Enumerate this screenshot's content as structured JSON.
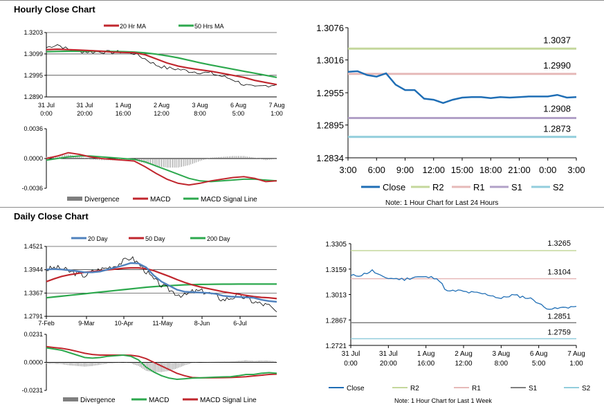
{
  "hourly": {
    "title": "Hourly Close Chart",
    "price_legend": [
      "20 Hr MA",
      "50 Hrs MA"
    ],
    "macd_legend": [
      "Divergence",
      "MACD",
      "MACD Signal Line"
    ],
    "colors": {
      "ma_fast": "#c0262d",
      "ma_slow": "#2ca84d",
      "price": "#000000",
      "signal": "#2ca84d",
      "macd": "#c0262d",
      "divergence": "#7f7f7f"
    },
    "x_ticks": [
      [
        "31 Jul",
        "0:00"
      ],
      [
        "31 Jul",
        "20:00"
      ],
      [
        "1 Aug",
        "16:00"
      ],
      [
        "2 Aug",
        "12:00"
      ],
      [
        "3 Aug",
        "8:00"
      ],
      [
        "6 Aug",
        "5:00"
      ],
      [
        "7 Aug",
        "1:00"
      ]
    ]
  },
  "daily": {
    "title": "Daily Close Chart",
    "price_legend": [
      "20 Day",
      "50 Day",
      "200 Day"
    ],
    "macd_legend": [
      "Divergence",
      "MACD",
      "MACD Signal Line"
    ],
    "colors": {
      "ma20": "#4f81bd",
      "ma50": "#c0262d",
      "ma200": "#2ca84d",
      "price": "#000000",
      "macd": "#2ca84d",
      "signal": "#c0262d",
      "divergence": "#7f7f7f"
    },
    "x_ticks": [
      "7-Feb",
      "9-Mar",
      "10-Apr",
      "11-May",
      "8-Jun",
      "6-Jul"
    ]
  },
  "pivot24": {
    "note": "Note: 1 Hour Chart for Last 24 Hours",
    "legend": [
      "Close",
      "R2",
      "R1",
      "S1",
      "S2"
    ],
    "colors": {
      "close": "#1f6eb5",
      "R2": "#c4d79b",
      "R1": "#e6b9b8",
      "S1": "#b1a0c7",
      "S2": "#92cddc"
    }
  },
  "pivotweek": {
    "note": "Note: 1 Hour Chart for Last 1 Week",
    "legend": [
      "Close",
      "R2",
      "R1",
      "S1",
      "S2"
    ],
    "colors": {
      "close": "#1f6eb5",
      "R2": "#c4d79b",
      "R1": "#e6b9b8",
      "S1": "#7f7f7f",
      "S2": "#92cddc"
    },
    "x_ticks": [
      [
        "31 Jul",
        "0:00"
      ],
      [
        "31 Jul",
        "20:00"
      ],
      [
        "1 Aug",
        "16:00"
      ],
      [
        "2 Aug",
        "12:00"
      ],
      [
        "3 Aug",
        "8:00"
      ],
      [
        "6 Aug",
        "5:00"
      ],
      [
        "7 Aug",
        "1:00"
      ]
    ]
  },
  "chart_data": [
    {
      "id": "hourly_price",
      "type": "line",
      "title": "Hourly Close Chart",
      "ylim": [
        1.289,
        1.3203
      ],
      "yticks": [
        1.3203,
        1.3099,
        1.2995,
        1.289
      ],
      "x": [
        0,
        6,
        12,
        18,
        24,
        30,
        36,
        42,
        48,
        54,
        60,
        66,
        72,
        78,
        84,
        90,
        96,
        102,
        108,
        114,
        120,
        126
      ],
      "series": [
        {
          "name": "Close",
          "values": [
            1.313,
            1.3145,
            1.312,
            1.3112,
            1.3108,
            1.311,
            1.3106,
            1.311,
            1.3102,
            1.3075,
            1.3045,
            1.303,
            1.3025,
            1.3015,
            1.301,
            1.3005,
            1.299,
            1.2975,
            1.295,
            1.2935,
            1.2945,
            1.295
          ]
        },
        {
          "name": "20 Hr MA",
          "values": [
            1.312,
            1.3122,
            1.312,
            1.3118,
            1.3115,
            1.3112,
            1.3108,
            1.3106,
            1.3105,
            1.3095,
            1.3075,
            1.3055,
            1.304,
            1.303,
            1.3022,
            1.3015,
            1.3005,
            1.2995,
            1.2985,
            1.297,
            1.296,
            1.295
          ]
        },
        {
          "name": "50 Hrs MA",
          "values": [
            1.311,
            1.3111,
            1.3112,
            1.3112,
            1.3112,
            1.3112,
            1.3111,
            1.311,
            1.3108,
            1.3104,
            1.3098,
            1.309,
            1.308,
            1.3068,
            1.3056,
            1.3045,
            1.3035,
            1.3025,
            1.3015,
            1.3005,
            1.2995,
            1.2985
          ]
        }
      ]
    },
    {
      "id": "hourly_macd",
      "type": "line",
      "ylim": [
        -0.0036,
        0.0036
      ],
      "yticks": [
        0.0036,
        0.0,
        -0.0036
      ],
      "x": [
        0,
        6,
        12,
        18,
        24,
        30,
        36,
        42,
        48,
        54,
        60,
        66,
        72,
        78,
        84,
        90,
        96,
        102,
        108,
        114,
        120,
        126
      ],
      "series": [
        {
          "name": "MACD",
          "values": [
            0.0,
            0.0003,
            0.0007,
            0.0005,
            0.0002,
            0.0,
            -0.0001,
            -0.0002,
            -0.0003,
            -0.001,
            -0.0018,
            -0.0025,
            -0.003,
            -0.0032,
            -0.003,
            -0.0027,
            -0.0025,
            -0.0023,
            -0.0022,
            -0.0024,
            -0.0028,
            -0.0027
          ]
        },
        {
          "name": "MACD Signal Line",
          "values": [
            -0.0002,
            0.0,
            0.0002,
            0.0003,
            0.0003,
            0.0002,
            0.0001,
            0.0,
            -0.0001,
            -0.0004,
            -0.0009,
            -0.0014,
            -0.0019,
            -0.0024,
            -0.0027,
            -0.0028,
            -0.0027,
            -0.0026,
            -0.0025,
            -0.0025,
            -0.0026,
            -0.0027
          ]
        },
        {
          "name": "Divergence",
          "values": [
            0.0002,
            0.0003,
            0.0005,
            0.0002,
            -0.0001,
            -0.0002,
            -0.0002,
            -0.0002,
            -0.0002,
            -0.0006,
            -0.0009,
            -0.0011,
            -0.0011,
            -0.0008,
            -0.0003,
            0.0001,
            0.0002,
            0.0003,
            0.0003,
            0.0001,
            -0.0002,
            0.0
          ]
        }
      ]
    },
    {
      "id": "daily_price",
      "type": "line",
      "title": "Daily Close Chart",
      "ylim": [
        1.2791,
        1.4521
      ],
      "yticks": [
        1.4521,
        1.3944,
        1.3367,
        1.2791
      ],
      "x": [
        0,
        6,
        12,
        18,
        24,
        30,
        36,
        42,
        48,
        54,
        60,
        66,
        72,
        78,
        84,
        90,
        96,
        102,
        108,
        114,
        120,
        126,
        132,
        138,
        144,
        150,
        156,
        162,
        168,
        174,
        180
      ],
      "series": [
        {
          "name": "Close",
          "values": [
            1.395,
            1.399,
            1.398,
            1.39,
            1.385,
            1.38,
            1.39,
            1.395,
            1.4,
            1.405,
            1.415,
            1.425,
            1.41,
            1.39,
            1.37,
            1.355,
            1.345,
            1.335,
            1.33,
            1.34,
            1.342,
            1.338,
            1.33,
            1.32,
            1.325,
            1.33,
            1.325,
            1.315,
            1.31,
            1.305,
            1.29
          ]
        },
        {
          "name": "20 Day",
          "values": [
            1.395,
            1.396,
            1.395,
            1.393,
            1.391,
            1.388,
            1.388,
            1.39,
            1.395,
            1.4,
            1.405,
            1.411,
            1.41,
            1.4,
            1.38,
            1.365,
            1.355,
            1.345,
            1.34,
            1.339,
            1.338,
            1.337,
            1.335,
            1.33,
            1.328,
            1.327,
            1.326,
            1.325,
            1.32,
            1.317,
            1.315
          ]
        },
        {
          "name": "50 Day",
          "values": [
            1.365,
            1.372,
            1.378,
            1.382,
            1.385,
            1.388,
            1.39,
            1.392,
            1.394,
            1.396,
            1.398,
            1.399,
            1.399,
            1.397,
            1.392,
            1.385,
            1.378,
            1.37,
            1.363,
            1.357,
            1.352,
            1.348,
            1.344,
            1.34,
            1.337,
            1.334,
            1.331,
            1.328,
            1.326,
            1.325,
            1.323
          ]
        },
        {
          "name": "200 Day",
          "values": [
            1.325,
            1.327,
            1.329,
            1.331,
            1.333,
            1.335,
            1.337,
            1.339,
            1.341,
            1.343,
            1.345,
            1.347,
            1.349,
            1.351,
            1.3525,
            1.354,
            1.355,
            1.356,
            1.357,
            1.3575,
            1.358,
            1.3583,
            1.3585,
            1.3587,
            1.3588,
            1.3589,
            1.359,
            1.359,
            1.359,
            1.359,
            1.359
          ]
        }
      ]
    },
    {
      "id": "daily_macd",
      "type": "line",
      "ylim": [
        -0.0231,
        0.0231
      ],
      "yticks": [
        0.0231,
        0.0,
        -0.0231
      ],
      "x": [
        0,
        6,
        12,
        18,
        24,
        30,
        36,
        42,
        48,
        54,
        60,
        66,
        72,
        78,
        84,
        90,
        96,
        102,
        108,
        114,
        120,
        126,
        132,
        138,
        144,
        150,
        156,
        162,
        168,
        174,
        180
      ],
      "series": [
        {
          "name": "MACD",
          "values": [
            0.012,
            0.011,
            0.01,
            0.008,
            0.006,
            0.004,
            0.0035,
            0.004,
            0.005,
            0.0055,
            0.006,
            0.005,
            0.002,
            -0.004,
            -0.008,
            -0.011,
            -0.013,
            -0.014,
            -0.0135,
            -0.013,
            -0.0128,
            -0.0125,
            -0.0122,
            -0.012,
            -0.0118,
            -0.011,
            -0.01,
            -0.01,
            -0.009,
            -0.0085,
            -0.009
          ]
        },
        {
          "name": "MACD Signal Line",
          "values": [
            0.013,
            0.0122,
            0.0115,
            0.0105,
            0.009,
            0.0075,
            0.0065,
            0.006,
            0.006,
            0.006,
            0.006,
            0.0058,
            0.005,
            0.003,
            0.0,
            -0.003,
            -0.006,
            -0.009,
            -0.011,
            -0.0125,
            -0.0128,
            -0.0128,
            -0.0127,
            -0.0126,
            -0.0125,
            -0.0122,
            -0.0118,
            -0.0112,
            -0.0106,
            -0.01,
            -0.0097
          ]
        },
        {
          "name": "Divergence",
          "values": [
            -0.001,
            -0.0012,
            -0.0015,
            -0.0025,
            -0.003,
            -0.0035,
            -0.003,
            -0.002,
            -0.001,
            -0.0005,
            0.0,
            -0.0008,
            -0.003,
            -0.007,
            -0.008,
            -0.008,
            -0.007,
            -0.005,
            -0.0025,
            -0.0005,
            0.0,
            0.0003,
            0.0005,
            0.0006,
            0.0007,
            0.0012,
            0.0018,
            0.0012,
            0.0016,
            0.0015,
            0.0007
          ]
        }
      ]
    },
    {
      "id": "pivot_24h",
      "type": "line",
      "ylim": [
        1.2834,
        1.3076
      ],
      "yticks": [
        1.3076,
        1.3016,
        1.2955,
        1.2895,
        1.2834
      ],
      "categories": [
        "3:00",
        "6:00",
        "9:00",
        "12:00",
        "15:00",
        "18:00",
        "21:00",
        "0:00",
        "3:00"
      ],
      "levels": {
        "R2": 1.3037,
        "R1": 1.299,
        "S1": 1.2908,
        "S2": 1.2873
      },
      "level_labels": {
        "R2": "1.3037",
        "R1": "1.2990",
        "S1": "1.2908",
        "S2": "1.2873"
      },
      "series": [
        {
          "name": "Close",
          "x": [
            0,
            1,
            2,
            3,
            4,
            5,
            6,
            7,
            8,
            9,
            10,
            11,
            12,
            13,
            14,
            15,
            16,
            17,
            18,
            19,
            20,
            21,
            22,
            23,
            24
          ],
          "values": [
            1.2994,
            1.2995,
            1.2988,
            1.2985,
            1.2991,
            1.297,
            1.296,
            1.296,
            1.2944,
            1.2942,
            1.2936,
            1.2942,
            1.2946,
            1.2947,
            1.2947,
            1.2945,
            1.2947,
            1.2946,
            1.2947,
            1.2948,
            1.2948,
            1.2948,
            1.2951,
            1.2946,
            1.2947
          ]
        }
      ]
    },
    {
      "id": "pivot_week",
      "type": "line",
      "ylim": [
        1.2721,
        1.3305
      ],
      "yticks": [
        1.3305,
        1.3159,
        1.3013,
        1.2867,
        1.2721
      ],
      "levels": {
        "R2": 1.3265,
        "R1": 1.3104,
        "S1": 1.2851,
        "S2": 1.2759
      },
      "level_labels": {
        "R2": "1.3265",
        "R1": "1.3104",
        "S1": "1.2851",
        "S2": "1.2759"
      },
      "series": [
        {
          "name": "Close",
          "x": [
            0,
            6,
            12,
            18,
            24,
            30,
            36,
            42,
            48,
            54,
            60,
            66,
            72,
            78,
            84,
            90,
            96,
            102,
            108,
            114,
            120,
            126
          ],
          "values": [
            1.312,
            1.3125,
            1.315,
            1.311,
            1.3105,
            1.31,
            1.3115,
            1.3112,
            1.311,
            1.303,
            1.3035,
            1.3025,
            1.302,
            1.301,
            1.299,
            1.301,
            1.3,
            1.2985,
            1.294,
            1.293,
            1.294,
            1.2945
          ]
        }
      ]
    }
  ]
}
